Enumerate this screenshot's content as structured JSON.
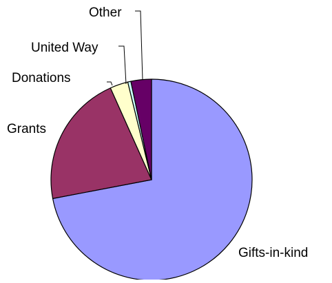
{
  "chart_data": {
    "type": "pie",
    "title": "",
    "start_angle_deg": 0,
    "direction": "clockwise",
    "slices": [
      {
        "label": "Gifts-in-kind",
        "value": 72.0,
        "color": "#9999FF"
      },
      {
        "label": "Grants",
        "value": 21.3,
        "color": "#993366"
      },
      {
        "label": "Donations",
        "value": 2.9,
        "color": "#FFFFCC"
      },
      {
        "label": "United Way",
        "value": 0.5,
        "color": "#CCFFFF"
      },
      {
        "label": "Other",
        "value": 3.3,
        "color": "#660066"
      }
    ],
    "legend": "none",
    "data_labels": "category-name"
  }
}
